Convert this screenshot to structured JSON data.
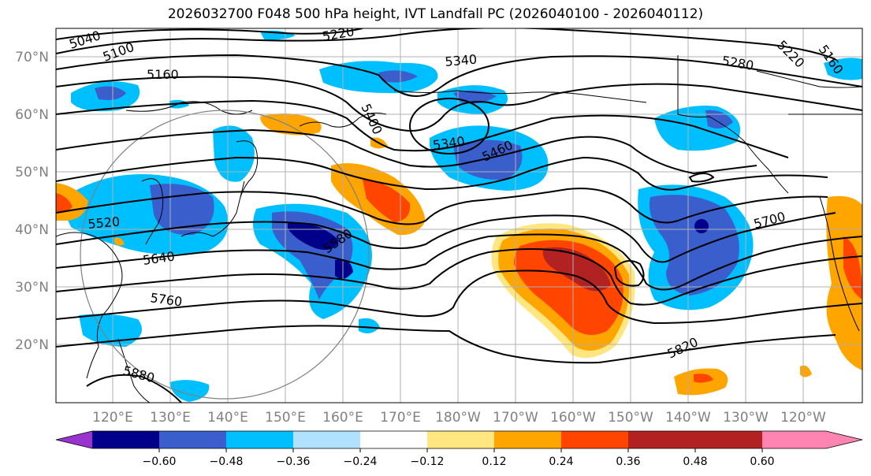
{
  "title": "2026032700 F048 500 hPa height, IVT Landfall PC (2026040100 - 2026040112)",
  "lat_labels": [
    "70°N",
    "60°N",
    "50°N",
    "40°N",
    "30°N",
    "20°N"
  ],
  "lon_labels": [
    "120°E",
    "130°E",
    "140°E",
    "150°E",
    "160°E",
    "170°E",
    "180°W",
    "170°W",
    "160°W",
    "150°W",
    "140°W",
    "130°W",
    "120°W"
  ],
  "colorbar": {
    "ticks": [
      "−0.60",
      "−0.48",
      "−0.36",
      "−0.24",
      "−0.12",
      "0.12",
      "0.24",
      "0.36",
      "0.48",
      "0.60"
    ],
    "colors": [
      "#9a32cd",
      "#00008b",
      "#3a5fcd",
      "#00bfff",
      "#b0e2ff",
      "#ffffff",
      "#ffe680",
      "#ffa500",
      "#ff4500",
      "#b22222",
      "#ff85b0"
    ]
  },
  "contour_labels": [
    "5040",
    "5100",
    "5160",
    "5220",
    "5220",
    "5280",
    "5340",
    "5400",
    "5340",
    "5460",
    "5520",
    "5580",
    "5640",
    "5700",
    "5760",
    "5820",
    "5880",
    "5160"
  ]
}
